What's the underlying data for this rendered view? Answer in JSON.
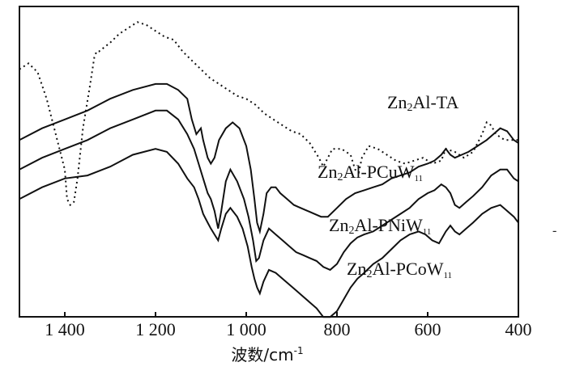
{
  "chart_data": {
    "type": "line",
    "xlabel": "波数/cm-1",
    "xlabel_main": "波数/cm",
    "xlabel_sup": "-1",
    "xlim": [
      1500,
      400
    ],
    "xticks": [
      {
        "value": 1400,
        "label": "1 400"
      },
      {
        "value": 1200,
        "label": "1 200"
      },
      {
        "value": 1000,
        "label": "1 000"
      },
      {
        "value": 800,
        "label": "800"
      },
      {
        "value": 600,
        "label": "600"
      },
      {
        "value": 400,
        "label": "400"
      }
    ],
    "ylabel": "",
    "ylim": [
      0,
      100
    ],
    "grid": false,
    "series": [
      {
        "name": "Zn2Al-TA",
        "label_main": "Zn",
        "label_sub1": "2",
        "label_rest": "Al-TA",
        "label_sub2": "",
        "style": "dotted",
        "points": [
          [
            1500,
            82
          ],
          [
            1480,
            84
          ],
          [
            1460,
            81
          ],
          [
            1440,
            72
          ],
          [
            1420,
            60
          ],
          [
            1400,
            48
          ],
          [
            1395,
            38
          ],
          [
            1388,
            36
          ],
          [
            1380,
            37
          ],
          [
            1372,
            45
          ],
          [
            1360,
            62
          ],
          [
            1345,
            76
          ],
          [
            1335,
            86
          ],
          [
            1330,
            88
          ],
          [
            1325,
            88
          ],
          [
            1300,
            91
          ],
          [
            1280,
            94
          ],
          [
            1260,
            96
          ],
          [
            1240,
            98
          ],
          [
            1220,
            97
          ],
          [
            1200,
            95
          ],
          [
            1180,
            93
          ],
          [
            1160,
            92
          ],
          [
            1140,
            88
          ],
          [
            1120,
            85
          ],
          [
            1100,
            82
          ],
          [
            1080,
            79
          ],
          [
            1060,
            77
          ],
          [
            1040,
            75
          ],
          [
            1020,
            73
          ],
          [
            1000,
            72
          ],
          [
            980,
            70
          ],
          [
            960,
            67
          ],
          [
            940,
            65
          ],
          [
            920,
            63
          ],
          [
            900,
            61
          ],
          [
            880,
            60
          ],
          [
            860,
            57
          ],
          [
            840,
            52
          ],
          [
            830,
            49
          ],
          [
            820,
            52
          ],
          [
            810,
            55
          ],
          [
            790,
            55
          ],
          [
            770,
            53
          ],
          [
            760,
            48
          ],
          [
            752,
            47
          ],
          [
            745,
            52
          ],
          [
            730,
            56
          ],
          [
            710,
            55
          ],
          [
            690,
            53
          ],
          [
            670,
            51
          ],
          [
            650,
            50
          ],
          [
            630,
            51
          ],
          [
            610,
            52
          ],
          [
            590,
            50
          ],
          [
            570,
            51
          ],
          [
            560,
            55
          ],
          [
            540,
            54
          ],
          [
            520,
            52
          ],
          [
            500,
            54
          ],
          [
            480,
            60
          ],
          [
            470,
            64
          ],
          [
            460,
            63
          ],
          [
            450,
            60
          ],
          [
            430,
            58
          ],
          [
            410,
            58
          ],
          [
            400,
            58
          ]
        ]
      },
      {
        "name": "Zn2Al-PCuW11",
        "label_main": "Zn",
        "label_sub1": "2",
        "label_rest": "Al-PCuW",
        "label_sub2": "11",
        "style": "solid",
        "points": [
          [
            1500,
            58
          ],
          [
            1450,
            62
          ],
          [
            1400,
            65
          ],
          [
            1350,
            68
          ],
          [
            1300,
            72
          ],
          [
            1250,
            75
          ],
          [
            1200,
            77
          ],
          [
            1175,
            77
          ],
          [
            1150,
            75
          ],
          [
            1130,
            72
          ],
          [
            1120,
            65
          ],
          [
            1110,
            60
          ],
          [
            1100,
            62
          ],
          [
            1095,
            58
          ],
          [
            1085,
            52
          ],
          [
            1078,
            50
          ],
          [
            1070,
            52
          ],
          [
            1060,
            58
          ],
          [
            1045,
            62
          ],
          [
            1030,
            64
          ],
          [
            1015,
            62
          ],
          [
            1000,
            56
          ],
          [
            990,
            48
          ],
          [
            982,
            38
          ],
          [
            976,
            30
          ],
          [
            970,
            27
          ],
          [
            962,
            33
          ],
          [
            955,
            40
          ],
          [
            945,
            42
          ],
          [
            935,
            42
          ],
          [
            925,
            40
          ],
          [
            910,
            38
          ],
          [
            895,
            36
          ],
          [
            880,
            35
          ],
          [
            865,
            34
          ],
          [
            850,
            33
          ],
          [
            835,
            32
          ],
          [
            820,
            32
          ],
          [
            800,
            35
          ],
          [
            780,
            38
          ],
          [
            760,
            40
          ],
          [
            740,
            41
          ],
          [
            720,
            42
          ],
          [
            700,
            43
          ],
          [
            680,
            45
          ],
          [
            660,
            46
          ],
          [
            640,
            47
          ],
          [
            620,
            49
          ],
          [
            600,
            50
          ],
          [
            585,
            51
          ],
          [
            570,
            53
          ],
          [
            560,
            55
          ],
          [
            550,
            53
          ],
          [
            540,
            52
          ],
          [
            525,
            53
          ],
          [
            510,
            54
          ],
          [
            490,
            56
          ],
          [
            470,
            58
          ],
          [
            455,
            60
          ],
          [
            440,
            62
          ],
          [
            425,
            61
          ],
          [
            410,
            58
          ],
          [
            400,
            57
          ]
        ]
      },
      {
        "name": "Zn2Al-PNiW11",
        "label_main": "Zn",
        "label_sub1": "2",
        "label_rest": "Al-PNiW",
        "label_sub2": "11",
        "style": "solid",
        "points": [
          [
            1500,
            48
          ],
          [
            1450,
            52
          ],
          [
            1400,
            55
          ],
          [
            1350,
            58
          ],
          [
            1300,
            62
          ],
          [
            1250,
            65
          ],
          [
            1200,
            68
          ],
          [
            1175,
            68
          ],
          [
            1150,
            65
          ],
          [
            1130,
            60
          ],
          [
            1115,
            55
          ],
          [
            1105,
            50
          ],
          [
            1095,
            45
          ],
          [
            1085,
            40
          ],
          [
            1078,
            38
          ],
          [
            1070,
            34
          ],
          [
            1062,
            28
          ],
          [
            1055,
            34
          ],
          [
            1045,
            44
          ],
          [
            1035,
            48
          ],
          [
            1020,
            44
          ],
          [
            1005,
            38
          ],
          [
            995,
            32
          ],
          [
            985,
            24
          ],
          [
            978,
            17
          ],
          [
            972,
            18
          ],
          [
            962,
            24
          ],
          [
            950,
            28
          ],
          [
            935,
            26
          ],
          [
            920,
            24
          ],
          [
            905,
            22
          ],
          [
            890,
            20
          ],
          [
            875,
            19
          ],
          [
            860,
            18
          ],
          [
            845,
            17
          ],
          [
            830,
            15
          ],
          [
            815,
            14
          ],
          [
            800,
            16
          ],
          [
            785,
            20
          ],
          [
            770,
            23
          ],
          [
            755,
            25
          ],
          [
            740,
            26
          ],
          [
            720,
            27
          ],
          [
            700,
            29
          ],
          [
            680,
            31
          ],
          [
            660,
            33
          ],
          [
            640,
            35
          ],
          [
            620,
            38
          ],
          [
            600,
            40
          ],
          [
            585,
            41
          ],
          [
            570,
            43
          ],
          [
            560,
            42
          ],
          [
            550,
            40
          ],
          [
            540,
            36
          ],
          [
            530,
            35
          ],
          [
            515,
            37
          ],
          [
            500,
            39
          ],
          [
            480,
            42
          ],
          [
            460,
            46
          ],
          [
            440,
            48
          ],
          [
            425,
            48
          ],
          [
            410,
            45
          ],
          [
            400,
            44
          ]
        ]
      },
      {
        "name": "Zn2Al-PCoW11",
        "label_main": "Zn",
        "label_sub1": "2",
        "label_rest": "Al-PCoW",
        "label_sub2": "11",
        "style": "solid",
        "points": [
          [
            1500,
            38
          ],
          [
            1450,
            42
          ],
          [
            1400,
            45
          ],
          [
            1350,
            46
          ],
          [
            1300,
            49
          ],
          [
            1250,
            53
          ],
          [
            1200,
            55
          ],
          [
            1175,
            54
          ],
          [
            1150,
            50
          ],
          [
            1130,
            45
          ],
          [
            1115,
            42
          ],
          [
            1105,
            38
          ],
          [
            1095,
            33
          ],
          [
            1085,
            30
          ],
          [
            1078,
            28
          ],
          [
            1070,
            26
          ],
          [
            1062,
            24
          ],
          [
            1055,
            28
          ],
          [
            1045,
            33
          ],
          [
            1035,
            35
          ],
          [
            1020,
            32
          ],
          [
            1008,
            28
          ],
          [
            997,
            22
          ],
          [
            988,
            15
          ],
          [
            982,
            11
          ],
          [
            976,
            8
          ],
          [
            970,
            6
          ],
          [
            962,
            10
          ],
          [
            950,
            14
          ],
          [
            935,
            13
          ],
          [
            920,
            11
          ],
          [
            905,
            9
          ],
          [
            890,
            7
          ],
          [
            875,
            5
          ],
          [
            860,
            3
          ],
          [
            845,
            1
          ],
          [
            830,
            -2
          ],
          [
            815,
            -2
          ],
          [
            800,
            0
          ],
          [
            785,
            4
          ],
          [
            770,
            8
          ],
          [
            755,
            11
          ],
          [
            740,
            13
          ],
          [
            720,
            16
          ],
          [
            700,
            18
          ],
          [
            680,
            21
          ],
          [
            660,
            24
          ],
          [
            640,
            26
          ],
          [
            620,
            27
          ],
          [
            605,
            26
          ],
          [
            590,
            24
          ],
          [
            575,
            23
          ],
          [
            560,
            27
          ],
          [
            550,
            29
          ],
          [
            540,
            27
          ],
          [
            530,
            26
          ],
          [
            515,
            28
          ],
          [
            500,
            30
          ],
          [
            480,
            33
          ],
          [
            460,
            35
          ],
          [
            440,
            36
          ],
          [
            425,
            34
          ],
          [
            410,
            32
          ],
          [
            400,
            30
          ]
        ]
      }
    ]
  }
}
